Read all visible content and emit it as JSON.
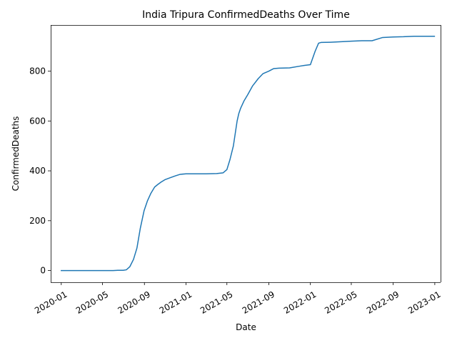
{
  "chart_data": {
    "type": "line",
    "title": "India Tripura ConfirmedDeaths Over Time",
    "xlabel": "Date",
    "ylabel": "ConfirmedDeaths",
    "x_tick_labels": [
      "2020-01",
      "2020-05",
      "2020-09",
      "2021-01",
      "2021-05",
      "2021-09",
      "2022-01",
      "2022-05",
      "2022-09",
      "2023-01"
    ],
    "y_tick_labels": [
      "0",
      "200",
      "400",
      "600",
      "800"
    ],
    "y_ticks": [
      0,
      200,
      400,
      600,
      800
    ],
    "xlim": [
      "2019-12-01",
      "2023-01-18"
    ],
    "ylim": [
      -47,
      985
    ],
    "grid": false,
    "series": [
      {
        "color": "#1f77b4",
        "x": [
          "2020-01-01",
          "2020-03-01",
          "2020-05-01",
          "2020-06-01",
          "2020-06-15",
          "2020-07-01",
          "2020-07-10",
          "2020-07-20",
          "2020-07-31",
          "2020-08-10",
          "2020-08-20",
          "2020-08-31",
          "2020-09-10",
          "2020-09-20",
          "2020-10-01",
          "2020-10-10",
          "2020-10-20",
          "2020-11-01",
          "2020-11-15",
          "2020-12-01",
          "2020-12-15",
          "2021-01-01",
          "2021-02-01",
          "2021-03-01",
          "2021-04-01",
          "2021-04-20",
          "2021-05-01",
          "2021-05-10",
          "2021-05-20",
          "2021-05-31",
          "2021-06-05",
          "2021-06-10",
          "2021-06-20",
          "2021-07-01",
          "2021-07-15",
          "2021-08-01",
          "2021-08-15",
          "2021-09-01",
          "2021-09-15",
          "2021-10-01",
          "2021-11-01",
          "2021-12-01",
          "2021-12-15",
          "2022-01-01",
          "2022-01-15",
          "2022-01-25",
          "2022-02-01",
          "2022-03-01",
          "2022-04-01",
          "2022-05-01",
          "2022-06-01",
          "2022-07-01",
          "2022-08-01",
          "2022-09-01",
          "2022-10-01",
          "2022-11-01",
          "2022-12-01",
          "2022-12-31"
        ],
        "y": [
          0,
          0,
          0,
          0,
          1,
          1,
          3,
          15,
          45,
          90,
          170,
          240,
          280,
          310,
          335,
          345,
          355,
          365,
          372,
          380,
          386,
          388,
          388,
          388,
          389,
          392,
          405,
          445,
          500,
          600,
          630,
          650,
          680,
          705,
          740,
          770,
          790,
          800,
          810,
          812,
          813,
          820,
          823,
          826,
          880,
          912,
          915,
          916,
          918,
          920,
          922,
          922,
          935,
          937,
          938,
          940,
          940,
          940
        ]
      }
    ]
  }
}
